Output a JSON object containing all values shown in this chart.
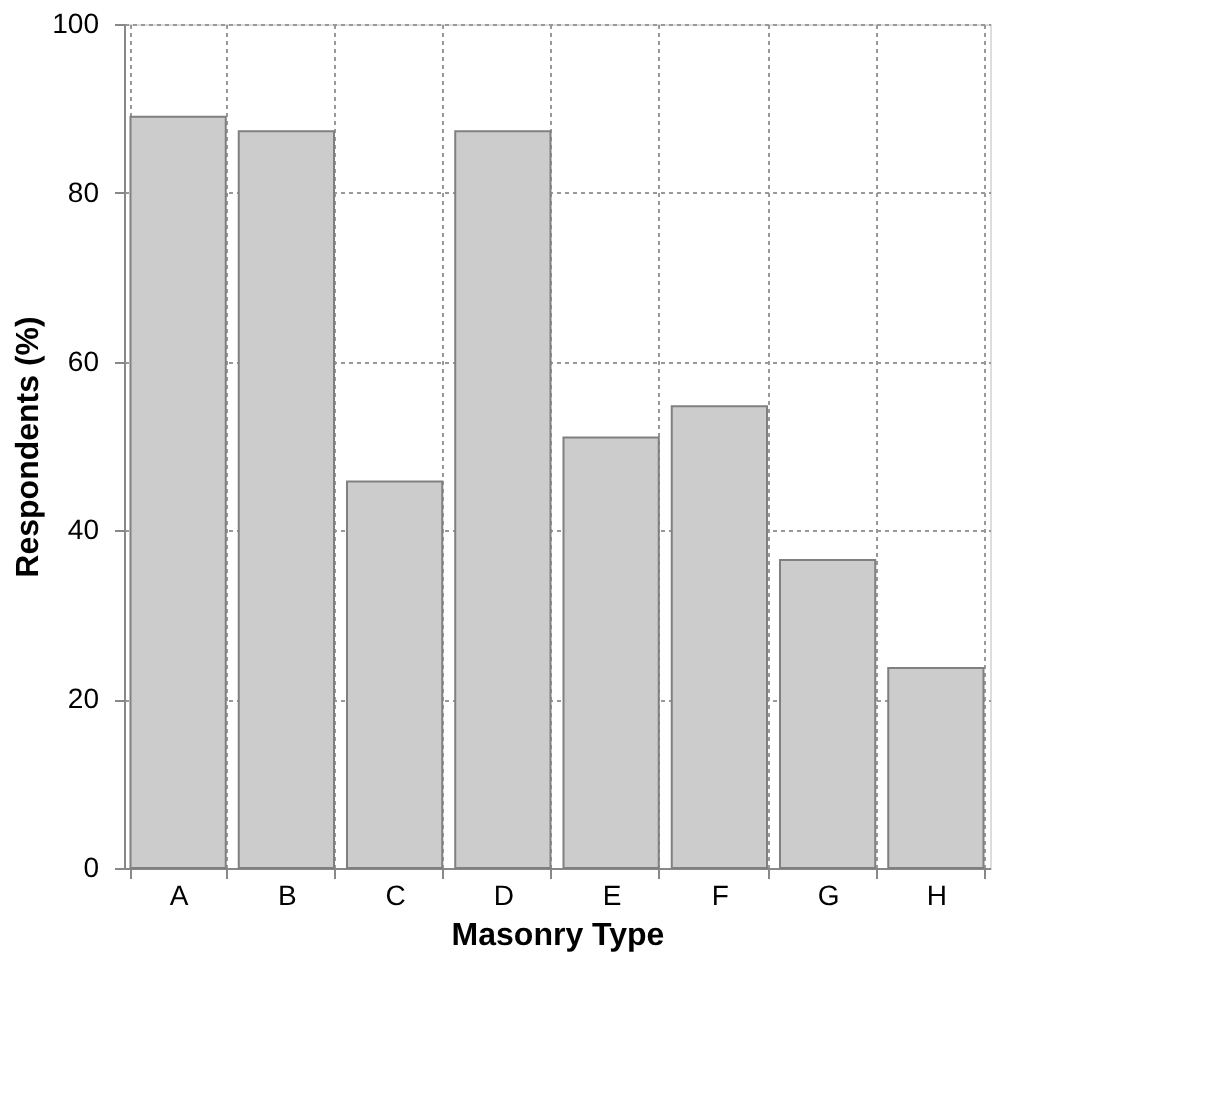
{
  "chart_data": {
    "type": "bar",
    "xlabel": "Masonry Type",
    "ylabel": "Respondents (%)",
    "categories": [
      "A",
      "B",
      "C",
      "D",
      "E",
      "F",
      "G",
      "H"
    ],
    "values": [
      89.0,
      87.3,
      45.8,
      87.3,
      51.0,
      54.7,
      36.5,
      23.7
    ],
    "color": "#cccccc",
    "ylim": [
      0,
      100
    ],
    "yticks": [
      0,
      20,
      40,
      60,
      80,
      100
    ],
    "grid": true
  }
}
